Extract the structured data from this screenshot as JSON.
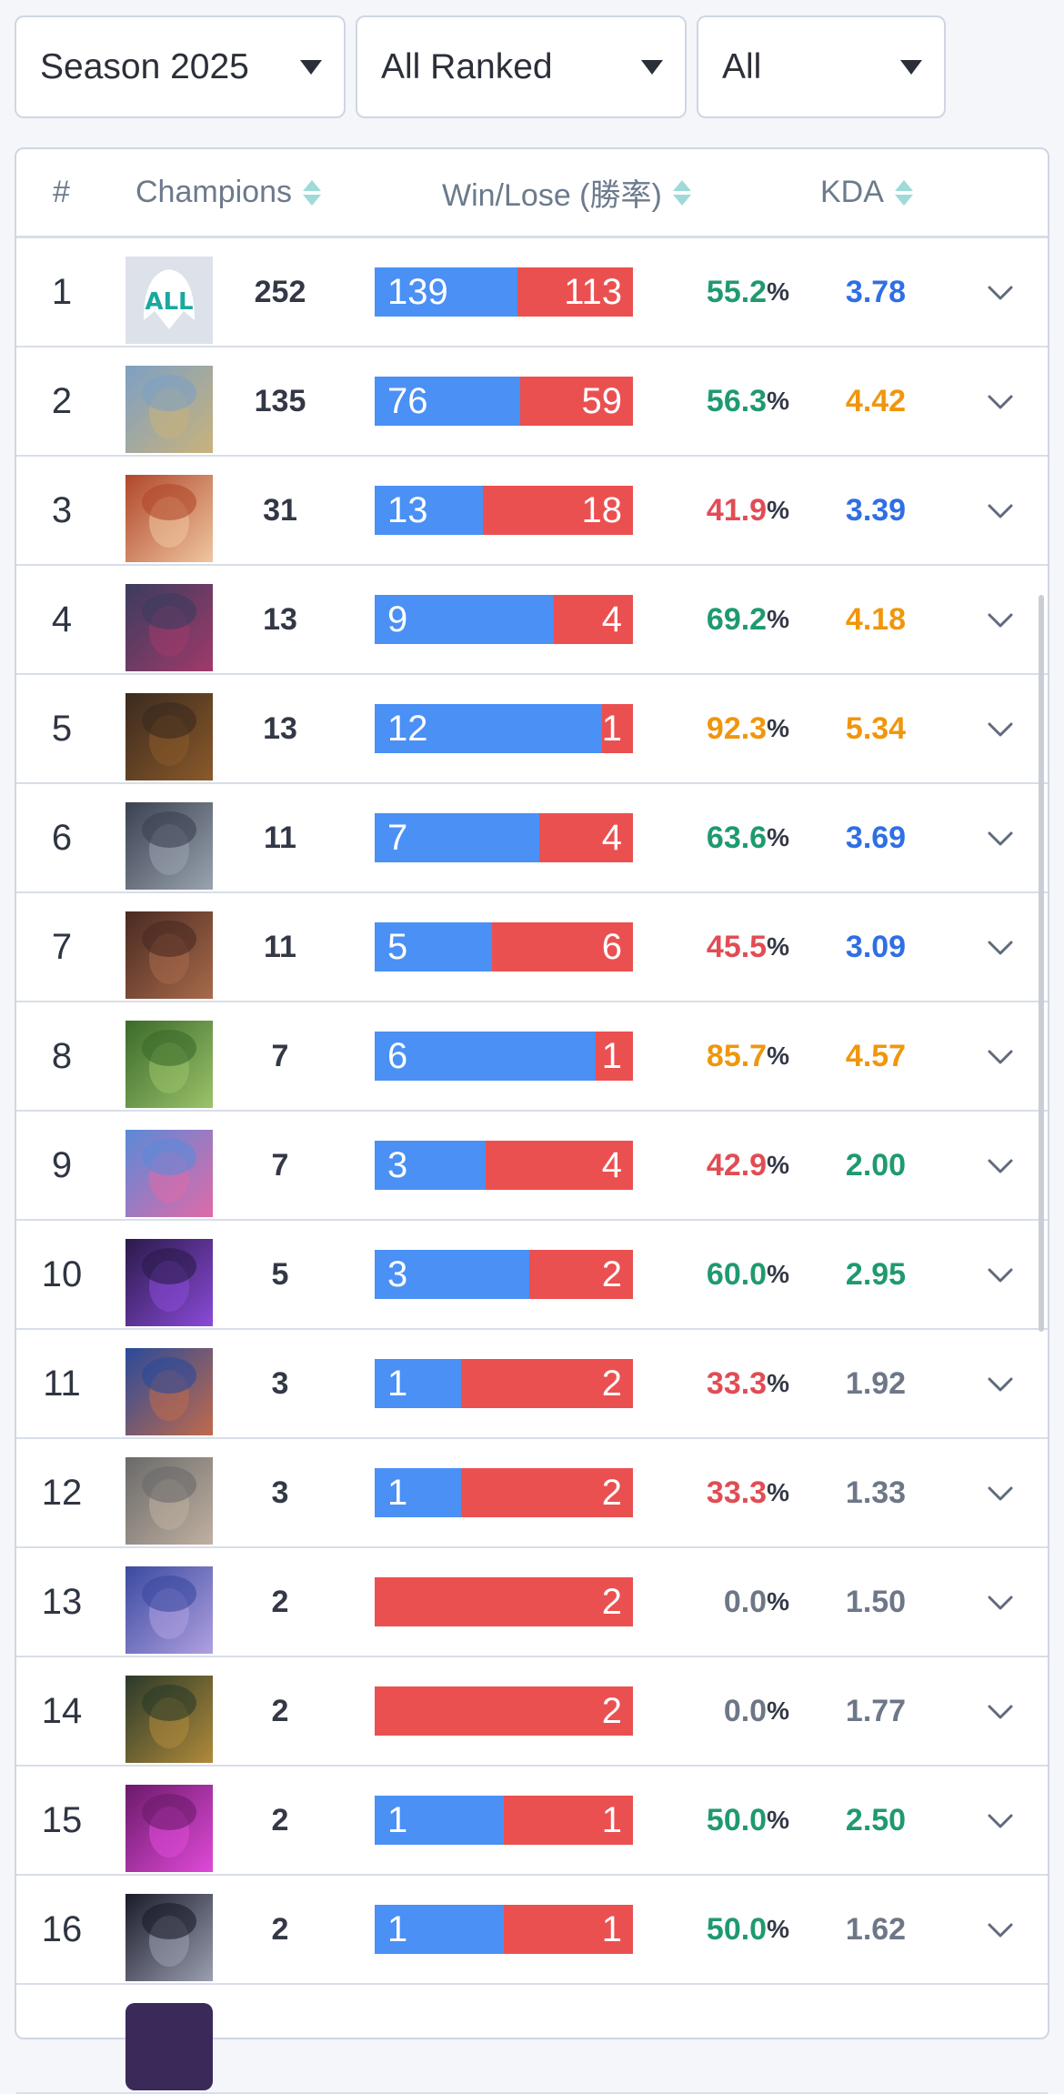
{
  "filters": {
    "season": "Season 2025",
    "queue": "All Ranked",
    "role": "All"
  },
  "table": {
    "headers": {
      "rank": "#",
      "champions": "Champions",
      "winlose": "Win/Lose (勝率)",
      "kda": "KDA"
    },
    "colors": {
      "win": "#4a90f5",
      "lose": "#eb5050",
      "green": "#1f9a6e",
      "red": "#e24c54",
      "orange": "#f0960c",
      "blue": "#2f6fe4",
      "gray": "#6d7787"
    },
    "rows": [
      {
        "rank": "1",
        "icon": "all-champions-icon",
        "games": "252",
        "wins": "139",
        "losses": "113",
        "winrate": "55.2",
        "kda": "3.78",
        "wr_color": "#1f9a6e",
        "kda_color": "#2f6fe4"
      },
      {
        "rank": "2",
        "icon": "champion-armored-knight-icon",
        "games": "135",
        "wins": "76",
        "losses": "59",
        "winrate": "56.3",
        "kda": "4.42",
        "wr_color": "#1f9a6e",
        "kda_color": "#f0960c"
      },
      {
        "rank": "3",
        "icon": "champion-red-haired-gunner-icon",
        "games": "31",
        "wins": "13",
        "losses": "18",
        "winrate": "41.9",
        "kda": "3.39",
        "wr_color": "#e24c54",
        "kda_color": "#2f6fe4"
      },
      {
        "rank": "4",
        "icon": "champion-void-creature-icon",
        "games": "13",
        "wins": "9",
        "losses": "4",
        "winrate": "69.2",
        "kda": "4.18",
        "wr_color": "#1f9a6e",
        "kda_color": "#f0960c"
      },
      {
        "rank": "5",
        "icon": "champion-dark-demon-icon",
        "games": "13",
        "wins": "12",
        "losses": "1",
        "winrate": "92.3",
        "kda": "5.34",
        "wr_color": "#f0960c",
        "kda_color": "#f0960c"
      },
      {
        "rank": "6",
        "icon": "champion-steel-helmet-icon",
        "games": "11",
        "wins": "7",
        "losses": "4",
        "winrate": "63.6",
        "kda": "3.69",
        "wr_color": "#1f9a6e",
        "kda_color": "#2f6fe4"
      },
      {
        "rank": "7",
        "icon": "champion-dark-skinned-hero-icon",
        "games": "11",
        "wins": "5",
        "losses": "6",
        "winrate": "45.5",
        "kda": "3.09",
        "wr_color": "#e24c54",
        "kda_color": "#2f6fe4"
      },
      {
        "rank": "8",
        "icon": "champion-green-mummy-icon",
        "games": "7",
        "wins": "6",
        "losses": "1",
        "winrate": "85.7",
        "kda": "4.57",
        "wr_color": "#f0960c",
        "kda_color": "#f0960c"
      },
      {
        "rank": "9",
        "icon": "champion-blue-haired-girl-icon",
        "games": "7",
        "wins": "3",
        "losses": "4",
        "winrate": "42.9",
        "kda": "2.00",
        "wr_color": "#e24c54",
        "kda_color": "#1f9a6e"
      },
      {
        "rank": "10",
        "icon": "champion-purple-void-icon",
        "games": "5",
        "wins": "3",
        "losses": "2",
        "winrate": "60.0",
        "kda": "2.95",
        "wr_color": "#1f9a6e",
        "kda_color": "#1f9a6e"
      },
      {
        "rank": "11",
        "icon": "champion-shouting-warrior-icon",
        "games": "3",
        "wins": "1",
        "losses": "2",
        "winrate": "33.3",
        "kda": "1.92",
        "wr_color": "#e24c54",
        "kda_color": "#6d7787"
      },
      {
        "rank": "12",
        "icon": "champion-white-haired-icon",
        "games": "3",
        "wins": "1",
        "losses": "2",
        "winrate": "33.3",
        "kda": "1.33",
        "wr_color": "#e24c54",
        "kda_color": "#6d7787"
      },
      {
        "rank": "13",
        "icon": "champion-blue-moon-icon",
        "games": "2",
        "wins": "",
        "losses": "2",
        "winrate": "0.0",
        "kda": "1.50",
        "wr_color": "#6d7787",
        "kda_color": "#6d7787"
      },
      {
        "rank": "14",
        "icon": "champion-masked-hunter-icon",
        "games": "2",
        "wins": "",
        "losses": "2",
        "winrate": "0.0",
        "kda": "1.77",
        "wr_color": "#6d7787",
        "kda_color": "#6d7787"
      },
      {
        "rank": "15",
        "icon": "champion-pink-magic-icon",
        "games": "2",
        "wins": "1",
        "losses": "1",
        "winrate": "50.0",
        "kda": "2.50",
        "wr_color": "#1f9a6e",
        "kda_color": "#1f9a6e"
      },
      {
        "rank": "16",
        "icon": "champion-grey-mask-icon",
        "games": "2",
        "wins": "1",
        "losses": "1",
        "winrate": "50.0",
        "kda": "1.62",
        "wr_color": "#1f9a6e",
        "kda_color": "#6d7787"
      }
    ],
    "percent_sign": "%",
    "all_icon_text": "ALL"
  }
}
